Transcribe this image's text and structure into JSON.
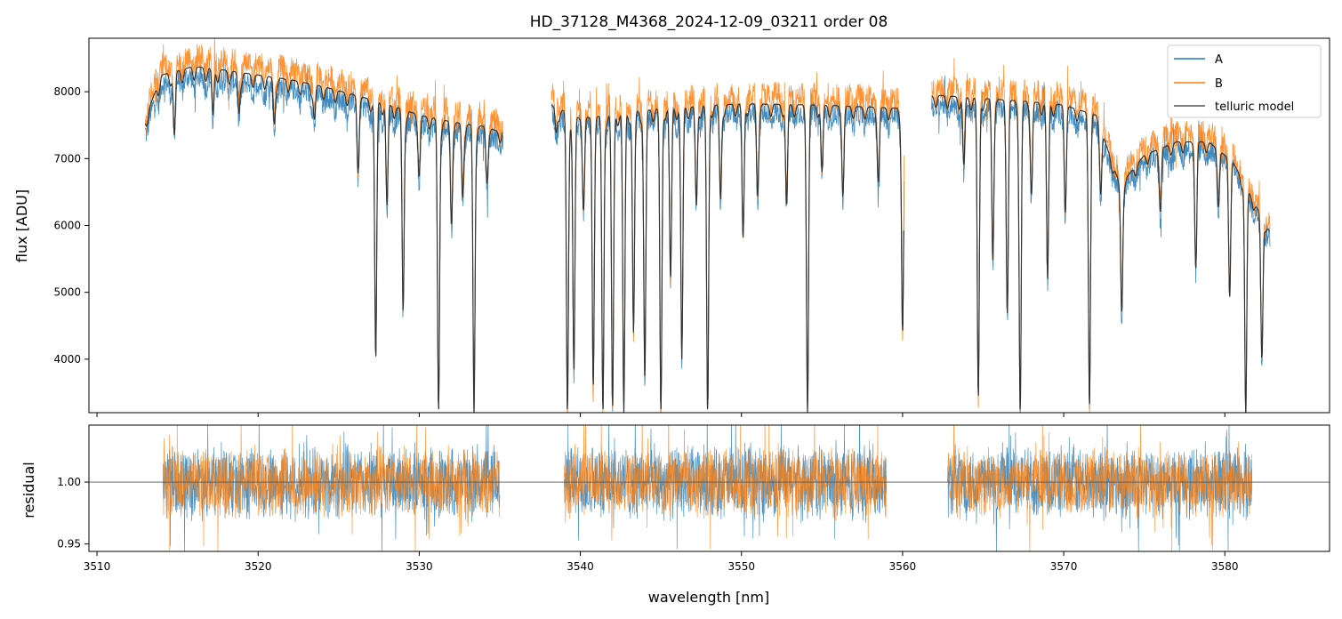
{
  "chart_data": [
    {
      "type": "line",
      "panel": "top",
      "title": "HD_37128_M4368_2024-12-09_03211  order 08",
      "xlabel": "",
      "ylabel": "flux [ADU]",
      "xlim": [
        3509.5,
        3586.5
      ],
      "ylim": [
        3200,
        8800
      ],
      "x_ticks": [
        3510,
        3520,
        3530,
        3540,
        3550,
        3560,
        3570,
        3580
      ],
      "y_ticks": [
        4000,
        5000,
        6000,
        7000,
        8000
      ],
      "y_tick_labels": [
        "4000",
        "5000",
        "6000",
        "7000",
        "8000"
      ],
      "legend_position": "top-right",
      "segments": [
        [
          3513.0,
          3535.2
        ],
        [
          3538.2,
          3560.1
        ],
        [
          3561.8,
          3582.8
        ]
      ],
      "continuum": {
        "x": [
          3513.0,
          3514.0,
          3516.0,
          3518.0,
          3520.0,
          3522.0,
          3524.0,
          3526.0,
          3528.0,
          3530.0,
          3532.0,
          3534.0,
          3535.0,
          3538.2,
          3540.0,
          3545.0,
          3550.0,
          3555.0,
          3560.0,
          3562.0,
          3565.0,
          3568.0,
          3570.0,
          3572.0,
          3573.5,
          3575.0,
          3577.0,
          3579.0,
          3580.5,
          3582.8
        ],
        "y": [
          7600,
          8250,
          8380,
          8320,
          8250,
          8180,
          8080,
          7950,
          7820,
          7650,
          7550,
          7480,
          7400,
          7800,
          7600,
          7750,
          7820,
          7800,
          7750,
          7950,
          7900,
          7850,
          7800,
          7650,
          6600,
          7050,
          7250,
          7250,
          6950,
          5900
        ]
      },
      "absorption_lines": [
        {
          "x": 3514.8,
          "y": 7350
        },
        {
          "x": 3517.2,
          "y": 7650
        },
        {
          "x": 3518.8,
          "y": 7700
        },
        {
          "x": 3521.0,
          "y": 7550
        },
        {
          "x": 3523.5,
          "y": 7600
        },
        {
          "x": 3526.2,
          "y": 6900
        },
        {
          "x": 3527.3,
          "y": 4000
        },
        {
          "x": 3528.0,
          "y": 6300
        },
        {
          "x": 3529.0,
          "y": 4700
        },
        {
          "x": 3530.0,
          "y": 6800
        },
        {
          "x": 3531.2,
          "y": 3200
        },
        {
          "x": 3532.0,
          "y": 6050
        },
        {
          "x": 3532.7,
          "y": 6450
        },
        {
          "x": 3533.4,
          "y": 3200
        },
        {
          "x": 3534.2,
          "y": 6700
        },
        {
          "x": 3538.5,
          "y": 7400
        },
        {
          "x": 3539.2,
          "y": 3200
        },
        {
          "x": 3539.6,
          "y": 3800
        },
        {
          "x": 3540.2,
          "y": 6300
        },
        {
          "x": 3540.8,
          "y": 3600
        },
        {
          "x": 3541.4,
          "y": 3200
        },
        {
          "x": 3542.0,
          "y": 3250
        },
        {
          "x": 3542.7,
          "y": 3200
        },
        {
          "x": 3543.3,
          "y": 4400
        },
        {
          "x": 3544.0,
          "y": 3700
        },
        {
          "x": 3545.0,
          "y": 3200
        },
        {
          "x": 3545.6,
          "y": 5200
        },
        {
          "x": 3546.3,
          "y": 4000
        },
        {
          "x": 3547.2,
          "y": 6300
        },
        {
          "x": 3547.9,
          "y": 3200
        },
        {
          "x": 3548.7,
          "y": 6400
        },
        {
          "x": 3550.1,
          "y": 5800
        },
        {
          "x": 3551.0,
          "y": 6500
        },
        {
          "x": 3552.8,
          "y": 6300
        },
        {
          "x": 3554.1,
          "y": 3200
        },
        {
          "x": 3555.0,
          "y": 6800
        },
        {
          "x": 3556.3,
          "y": 6500
        },
        {
          "x": 3558.5,
          "y": 6700
        },
        {
          "x": 3560.0,
          "y": 4400
        },
        {
          "x": 3563.8,
          "y": 6900
        },
        {
          "x": 3564.7,
          "y": 3400
        },
        {
          "x": 3565.6,
          "y": 5500
        },
        {
          "x": 3566.5,
          "y": 4700
        },
        {
          "x": 3567.3,
          "y": 3200
        },
        {
          "x": 3568.0,
          "y": 6500
        },
        {
          "x": 3569.0,
          "y": 5200
        },
        {
          "x": 3570.1,
          "y": 6300
        },
        {
          "x": 3571.6,
          "y": 3300
        },
        {
          "x": 3572.3,
          "y": 6600
        },
        {
          "x": 3573.6,
          "y": 4700
        },
        {
          "x": 3576.0,
          "y": 6300
        },
        {
          "x": 3578.2,
          "y": 5400
        },
        {
          "x": 3579.6,
          "y": 6400
        },
        {
          "x": 3580.3,
          "y": 5000
        },
        {
          "x": 3581.3,
          "y": 3200
        },
        {
          "x": 3582.3,
          "y": 4000
        }
      ],
      "series": [
        {
          "name": "A",
          "color": "#1f77b4",
          "noise": 170,
          "offset": -120
        },
        {
          "name": "B",
          "color": "#ff7f0e",
          "noise": 200,
          "offset": 140
        },
        {
          "name": "telluric model",
          "color": "#555555",
          "noise": 0,
          "offset": 0
        }
      ]
    },
    {
      "type": "line",
      "panel": "bottom",
      "title": "",
      "xlabel": "wavelength [nm]",
      "ylabel": "residual",
      "xlim": [
        3509.5,
        3586.5
      ],
      "ylim": [
        0.944,
        1.046
      ],
      "x_ticks": [
        3510,
        3520,
        3530,
        3540,
        3550,
        3560,
        3570,
        3580
      ],
      "x_tick_labels": [
        "3510",
        "3520",
        "3530",
        "3540",
        "3550",
        "3560",
        "3570",
        "3580"
      ],
      "y_ticks": [
        0.95,
        1.0
      ],
      "y_tick_labels": [
        "0.95",
        "1.00"
      ],
      "reference_line": 1.0,
      "segments": [
        [
          3514.1,
          3535.0
        ],
        [
          3539.0,
          3559.0
        ],
        [
          3562.8,
          3581.7
        ]
      ],
      "series": [
        {
          "name": "A",
          "color": "#1f77b4",
          "amplitude": 0.028
        },
        {
          "name": "B",
          "color": "#ff7f0e",
          "amplitude": 0.026
        }
      ]
    }
  ],
  "legend": {
    "items": [
      {
        "label": "A",
        "color": "#1f77b4"
      },
      {
        "label": "B",
        "color": "#ff7f0e"
      },
      {
        "label": "telluric model",
        "color": "#555555"
      }
    ]
  }
}
